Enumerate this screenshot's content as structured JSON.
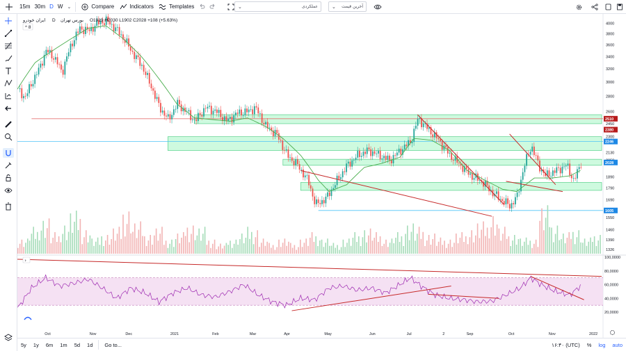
{
  "toolbar": {
    "intervals": [
      {
        "label": "15m",
        "active": false
      },
      {
        "label": "30m",
        "active": false
      },
      {
        "label": "D",
        "active": true
      },
      {
        "label": "W",
        "active": false
      }
    ],
    "compare_label": "Compare",
    "indicators_label": "Indicators",
    "templates_label": "Templates",
    "dropdown1": "عملکردی",
    "dropdown2": "آخرین قیمت"
  },
  "legend": {
    "name": "ایران خودرو",
    "interval": "D",
    "exchange": "بورس تهران",
    "ohlc": "O1919 H2030 L1902 C2028 +108 (+5.63%)"
  },
  "price_axis": {
    "min": 1300,
    "max": 4100,
    "ticks": [
      4000,
      3800,
      3600,
      3400,
      3200,
      3000,
      2800,
      2600,
      2450,
      2300,
      2130,
      2050,
      1890,
      1790,
      1690,
      1550,
      1460,
      1390,
      1326
    ],
    "badges": [
      {
        "value": 2510,
        "label": "2510",
        "color": "#b71c1c"
      },
      {
        "value": 2380,
        "label": "2380",
        "color": "#b71c1c"
      },
      {
        "value": 2246,
        "label": "2246",
        "color": "#1e88e5"
      },
      {
        "value": 2028,
        "label": "2028",
        "color": "#1e88e5"
      },
      {
        "value": 1605,
        "label": "1605",
        "color": "#1e88e5"
      }
    ]
  },
  "rsi_axis": {
    "ticks": [
      {
        "value": 100,
        "label": "100,0000"
      },
      {
        "value": 80,
        "label": "80,0000"
      },
      {
        "value": 60,
        "label": "60,0000"
      },
      {
        "value": 40,
        "label": "40,0000"
      },
      {
        "value": 20,
        "label": "20,0000"
      }
    ],
    "upper": 70,
    "lower": 30
  },
  "time_axis": [
    "Oct",
    "Nov",
    "Dec",
    "2021",
    "Feb",
    "Mar",
    "Apr",
    "May",
    "Jun",
    "Jul",
    "2",
    "Sep",
    "Oct",
    "Nov",
    "2022"
  ],
  "bottom": {
    "ranges": [
      "5y",
      "1y",
      "6m",
      "1m",
      "5d",
      "1d"
    ],
    "goto_label": "Go to...",
    "time_label": "۱۶:۴۰ (UTC)",
    "pct_label": "%",
    "log_label": "log",
    "auto_label": "auto"
  },
  "chart_data": {
    "type": "candlestick",
    "symbol": "ایران خودرو",
    "interval": "D",
    "ohlc_last": {
      "open": 1919,
      "high": 2030,
      "low": 1902,
      "close": 2028,
      "change": 108,
      "change_pct": 5.63
    },
    "candle_path_keypoints": [
      [
        0,
        2900
      ],
      [
        4,
        2780
      ],
      [
        8,
        3000
      ],
      [
        12,
        3200
      ],
      [
        16,
        3500
      ],
      [
        20,
        3400
      ],
      [
        25,
        3150
      ],
      [
        30,
        3600
      ],
      [
        35,
        3900
      ],
      [
        40,
        3850
      ],
      [
        45,
        4000
      ],
      [
        50,
        4050
      ],
      [
        55,
        3900
      ],
      [
        60,
        3700
      ],
      [
        65,
        3450
      ],
      [
        70,
        3250
      ],
      [
        75,
        2950
      ],
      [
        80,
        2650
      ],
      [
        85,
        2500
      ],
      [
        90,
        2700
      ],
      [
        95,
        2600
      ],
      [
        100,
        2480
      ],
      [
        106,
        2650
      ],
      [
        112,
        2600
      ],
      [
        118,
        2480
      ],
      [
        124,
        2580
      ],
      [
        130,
        2600
      ],
      [
        134,
        2650
      ],
      [
        140,
        2420
      ],
      [
        146,
        2330
      ],
      [
        152,
        2100
      ],
      [
        158,
        2000
      ],
      [
        164,
        1850
      ],
      [
        168,
        1650
      ],
      [
        174,
        1700
      ],
      [
        180,
        1850
      ],
      [
        186,
        2000
      ],
      [
        192,
        2100
      ],
      [
        198,
        2150
      ],
      [
        204,
        2100
      ],
      [
        210,
        2050
      ],
      [
        216,
        2150
      ],
      [
        222,
        2250
      ],
      [
        226,
        2510
      ],
      [
        232,
        2380
      ],
      [
        238,
        2250
      ],
      [
        244,
        2100
      ],
      [
        250,
        2000
      ],
      [
        256,
        1900
      ],
      [
        262,
        1850
      ],
      [
        268,
        1750
      ],
      [
        274,
        1680
      ],
      [
        278,
        1640
      ],
      [
        282,
        1720
      ],
      [
        286,
        2000
      ],
      [
        290,
        2200
      ],
      [
        294,
        2000
      ],
      [
        298,
        1900
      ],
      [
        304,
        1950
      ],
      [
        310,
        2000
      ],
      [
        314,
        1850
      ],
      [
        318,
        2028
      ]
    ],
    "ma_path_keypoints": [
      [
        0,
        2900
      ],
      [
        10,
        3300
      ],
      [
        20,
        3500
      ],
      [
        30,
        3700
      ],
      [
        40,
        3900
      ],
      [
        50,
        3950
      ],
      [
        60,
        3700
      ],
      [
        70,
        3400
      ],
      [
        80,
        3050
      ],
      [
        90,
        2700
      ],
      [
        100,
        2520
      ],
      [
        110,
        2500
      ],
      [
        120,
        2480
      ],
      [
        130,
        2520
      ],
      [
        140,
        2420
      ],
      [
        150,
        2280
      ],
      [
        160,
        2100
      ],
      [
        170,
        1860
      ],
      [
        176,
        1760
      ],
      [
        186,
        1820
      ],
      [
        196,
        1980
      ],
      [
        206,
        2020
      ],
      [
        216,
        2080
      ],
      [
        224,
        2280
      ],
      [
        234,
        2260
      ],
      [
        244,
        2150
      ],
      [
        254,
        1950
      ],
      [
        264,
        1860
      ],
      [
        274,
        1780
      ],
      [
        282,
        1760
      ],
      [
        292,
        1880
      ],
      [
        302,
        1880
      ],
      [
        312,
        1900
      ],
      [
        318,
        1950
      ]
    ],
    "volume_series_keypoints": [
      0.3,
      0.5,
      0.7,
      0.4,
      0.6,
      0.8,
      0.5,
      0.3,
      0.4,
      0.5,
      0.9,
      0.6,
      0.4,
      0.5,
      0.3,
      0.4,
      0.6,
      0.5,
      0.3,
      0.2,
      0.3,
      0.4,
      0.5,
      0.3,
      0.2,
      0.3,
      0.2,
      0.3,
      0.4,
      0.3,
      0.2,
      0.3,
      0.4,
      0.5,
      0.4,
      0.3,
      0.4,
      0.6,
      0.5,
      0.4,
      0.3,
      0.3,
      0.4,
      0.5,
      0.6,
      0.8,
      0.5,
      0.4,
      0.3,
      0.3,
      0.9,
      0.6,
      0.4,
      0.5,
      0.3,
      0.4
    ],
    "rsi_keypoints": [
      [
        0,
        25
      ],
      [
        8,
        55
      ],
      [
        16,
        70
      ],
      [
        24,
        58
      ],
      [
        32,
        62
      ],
      [
        40,
        68
      ],
      [
        48,
        55
      ],
      [
        56,
        40
      ],
      [
        64,
        55
      ],
      [
        72,
        48
      ],
      [
        80,
        35
      ],
      [
        88,
        48
      ],
      [
        96,
        55
      ],
      [
        104,
        45
      ],
      [
        112,
        42
      ],
      [
        120,
        50
      ],
      [
        128,
        60
      ],
      [
        136,
        45
      ],
      [
        144,
        35
      ],
      [
        152,
        30
      ],
      [
        160,
        40
      ],
      [
        168,
        38
      ],
      [
        176,
        55
      ],
      [
        184,
        58
      ],
      [
        192,
        52
      ],
      [
        200,
        55
      ],
      [
        208,
        48
      ],
      [
        216,
        60
      ],
      [
        222,
        70
      ],
      [
        228,
        58
      ],
      [
        236,
        45
      ],
      [
        244,
        40
      ],
      [
        252,
        38
      ],
      [
        260,
        35
      ],
      [
        268,
        36
      ],
      [
        276,
        45
      ],
      [
        284,
        55
      ],
      [
        290,
        70
      ],
      [
        296,
        60
      ],
      [
        304,
        50
      ],
      [
        312,
        45
      ],
      [
        318,
        58
      ]
    ],
    "horizontal_lines": [
      {
        "price": 2510,
        "color": "#e57373"
      },
      {
        "price": 2246,
        "color": "#4fc3f7"
      },
      {
        "price": 1605,
        "color": "#4fc3f7"
      }
    ],
    "zones": [
      {
        "from": 2450,
        "to": 2560,
        "x_from": 100,
        "x_to": 330
      },
      {
        "from": 2150,
        "to": 2300,
        "x_from": 85,
        "x_to": 330
      },
      {
        "from": 2000,
        "to": 2060,
        "x_from": 150,
        "x_to": 330
      },
      {
        "from": 1770,
        "to": 1840,
        "x_from": 160,
        "x_to": 330
      }
    ],
    "trendlines": [
      {
        "x1": 226,
        "y1": 2560,
        "x2": 275,
        "y2": 1650
      },
      {
        "x1": 160,
        "y1": 1950,
        "x2": 268,
        "y2": 1560
      },
      {
        "x1": 278,
        "y1": 2330,
        "x2": 304,
        "y2": 1820
      },
      {
        "x1": 276,
        "y1": 1850,
        "x2": 308,
        "y2": 1760
      }
    ],
    "rsi_trendlines": [
      {
        "x1": 0,
        "y1": 97,
        "x2": 330,
        "y2": 72
      },
      {
        "x1": 155,
        "y1": 22,
        "x2": 245,
        "y2": 58
      },
      {
        "x1": 232,
        "y1": 46,
        "x2": 272,
        "y2": 40
      },
      {
        "x1": 290,
        "y1": 72,
        "x2": 320,
        "y2": 38
      }
    ]
  }
}
